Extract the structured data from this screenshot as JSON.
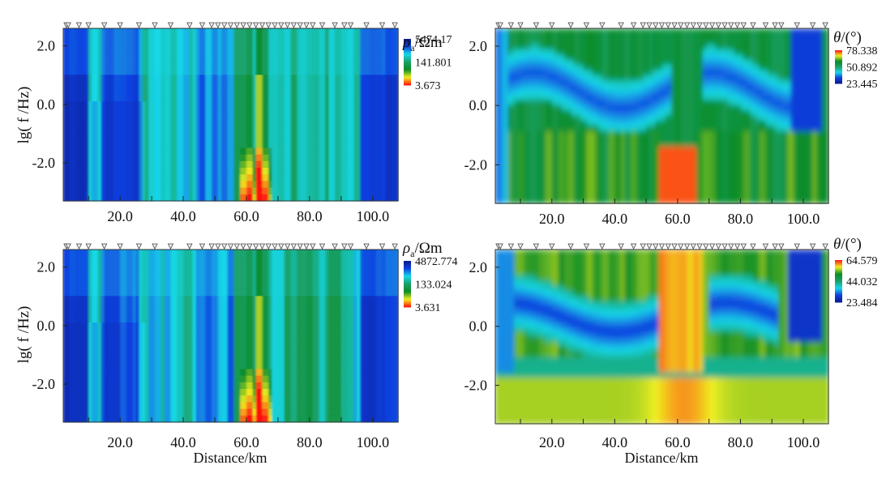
{
  "chart_data": [
    {
      "type": "heatmap",
      "panel": "top-left",
      "quantity": "apparent resistivity",
      "colorbar_title": "ρa/Ωm",
      "title_symbol": "ρ",
      "title_sub": "a",
      "title_unit": "/Ωm",
      "colorbar_labels": [
        "5474.17",
        "141.801",
        "3.673"
      ],
      "colorbar_scale": "log",
      "colorbar_range": [
        3.673,
        5474.17
      ],
      "palette": [
        "#0a1a8c",
        "#1040e0",
        "#18d8e8",
        "#1aa066",
        "#0a8c28",
        "#f0f020",
        "#ff1010"
      ],
      "ylabel": "lg( f /Hz)",
      "xlabel": "",
      "yticks": [
        "2.0",
        "0.0",
        "-2.0"
      ],
      "xticks": [
        "20.0",
        "40.0",
        "60.0",
        "80.0",
        "100.0"
      ],
      "xlim": [
        2,
        108
      ],
      "ylim": [
        -3.3,
        2.6
      ],
      "station_markers": "triangles along top edge",
      "cells_description": "vertical banded resistivity columns; blue resistive zones near 10-25 km and 45-55 km and 95-105 km; conductive yellow-red column at ~62-66 km"
    },
    {
      "type": "heatmap",
      "panel": "top-right",
      "quantity": "phase",
      "colorbar_title": "θ/(°)",
      "title_symbol": "θ",
      "title_unit": "/(°)",
      "colorbar_labels": [
        "78.338",
        "50.892",
        "23.445"
      ],
      "colorbar_scale": "linear",
      "colorbar_range": [
        23.445,
        78.338
      ],
      "palette": [
        "#0a1a8c",
        "#1040e0",
        "#18d8e8",
        "#1aa066",
        "#0a8c28",
        "#f0f020",
        "#ff1010"
      ],
      "ylabel": "",
      "xlabel": "",
      "yticks": [
        "2.0",
        "0.0",
        "-2.0"
      ],
      "xticks": [
        "20.0",
        "40.0",
        "60.0",
        "80.0",
        "100.0"
      ],
      "xlim": [
        2,
        108
      ],
      "ylim": [
        -3.3,
        2.6
      ]
    },
    {
      "type": "heatmap",
      "panel": "bottom-left",
      "quantity": "apparent resistivity",
      "colorbar_title": "ρa/Ωm",
      "title_symbol": "ρ",
      "title_sub": "a",
      "title_unit": "/Ωm",
      "colorbar_labels": [
        "4872.774",
        "133.024",
        "3.631"
      ],
      "colorbar_scale": "log",
      "colorbar_range": [
        3.631,
        4872.774
      ],
      "palette": [
        "#0a1a8c",
        "#1040e0",
        "#18d8e8",
        "#1aa066",
        "#0a8c28",
        "#f0f020",
        "#ff1010"
      ],
      "ylabel": "lg( f /Hz)",
      "xlabel": "Distance/km",
      "yticks": [
        "2.0",
        "0.0",
        "-2.0"
      ],
      "xticks": [
        "20.0",
        "40.0",
        "60.0",
        "80.0",
        "100.0"
      ],
      "xlim": [
        2,
        108
      ],
      "ylim": [
        -3.3,
        2.6
      ]
    },
    {
      "type": "heatmap",
      "panel": "bottom-right",
      "quantity": "phase",
      "colorbar_title": "θ/(°)",
      "title_symbol": "θ",
      "title_unit": "/(°)",
      "colorbar_labels": [
        "64.579",
        "44.032",
        "23.484"
      ],
      "colorbar_scale": "linear",
      "colorbar_range": [
        23.484,
        64.579
      ],
      "palette": [
        "#0a1a8c",
        "#1040e0",
        "#18d8e8",
        "#1aa066",
        "#0a8c28",
        "#f0f020",
        "#ff1010"
      ],
      "ylabel": "",
      "xlabel": "Distance/km",
      "yticks": [
        "2.0",
        "0.0",
        "-2.0"
      ],
      "xticks": [
        "20.0",
        "40.0",
        "60.0",
        "80.0",
        "100.0"
      ],
      "xlim": [
        2,
        108
      ],
      "ylim": [
        -3.3,
        2.6
      ]
    }
  ],
  "station_x_km": [
    3,
    3.6,
    7,
    10,
    15,
    20,
    26,
    31,
    36,
    42,
    46,
    49,
    51,
    53,
    55,
    57,
    59,
    61,
    63,
    65,
    67,
    69,
    71,
    73,
    75,
    77,
    79,
    81,
    84,
    88,
    91,
    93,
    98,
    103,
    107
  ]
}
